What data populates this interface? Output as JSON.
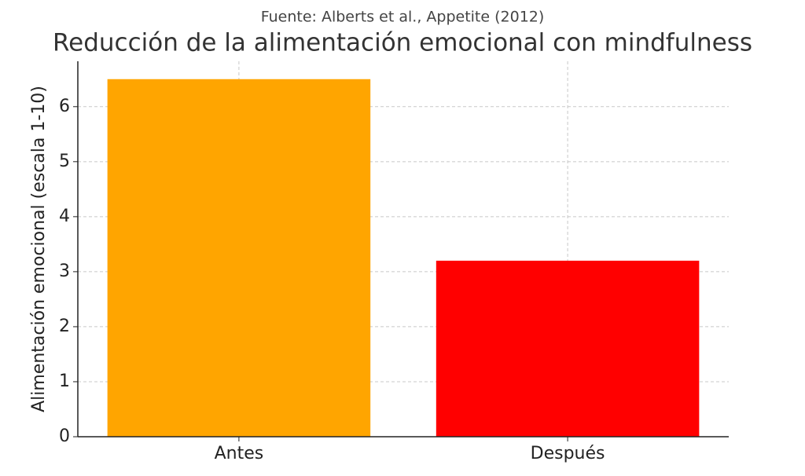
{
  "chart_data": {
    "type": "bar",
    "subtitle": "Fuente: Alberts et al., Appetite (2012)",
    "title": "Reducción de la alimentación emocional con mindfulness",
    "y_label": "Alimentación emocional (escala 1-10)",
    "categories": [
      "Antes",
      "Después"
    ],
    "values": [
      6.5,
      3.2
    ],
    "colors": [
      "#ffa500",
      "#ff0000"
    ],
    "ylim": [
      0,
      6.825
    ],
    "yticks": [
      0,
      1,
      2,
      3,
      4,
      5,
      6
    ],
    "grid": true
  }
}
